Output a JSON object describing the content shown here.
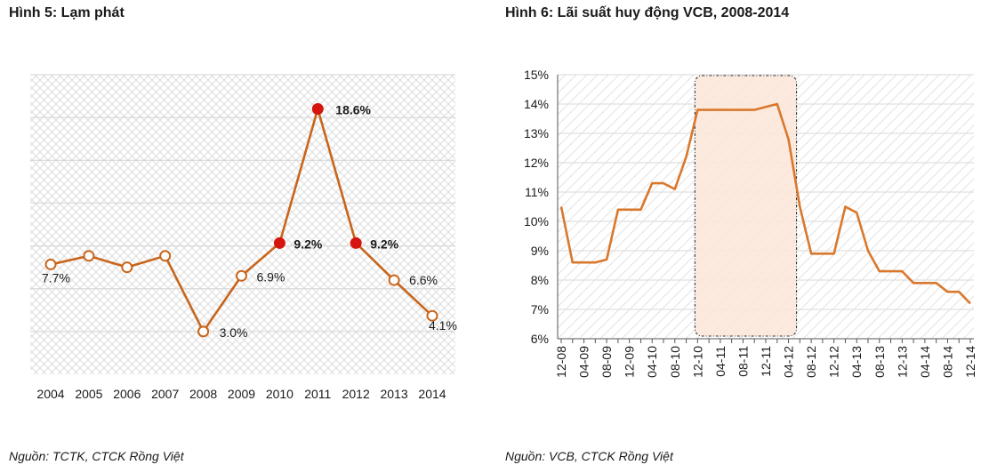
{
  "chart_data": [
    {
      "type": "line",
      "title": "Hình 5: Lạm phát",
      "source": "Nguồn: TCTK, CTCK Rồng Việt",
      "categories": [
        "2004",
        "2005",
        "2006",
        "2007",
        "2008",
        "2009",
        "2010",
        "2011",
        "2012",
        "2013",
        "2014"
      ],
      "values": [
        7.7,
        8.3,
        7.5,
        8.3,
        3.0,
        6.9,
        9.2,
        18.6,
        9.2,
        6.6,
        4.1
      ],
      "data_labels": [
        "7.7%",
        "",
        "",
        "",
        "3.0%",
        "6.9%",
        "9.2%",
        "18.6%",
        "9.2%",
        "6.6%",
        "4.1%"
      ],
      "highlighted": [
        false,
        false,
        false,
        false,
        false,
        false,
        true,
        true,
        true,
        false,
        false
      ],
      "ylim": [
        0,
        21
      ],
      "grid": true,
      "colors": {
        "line": "#c8651b",
        "highlight": "#d6150e",
        "marker_fill": "#ffffff",
        "grid": "#d4d4d4"
      }
    },
    {
      "type": "line",
      "title": "Hình 6: Lãi suất huy động VCB, 2008-2014",
      "source": "Nguồn: VCB, CTCK Rồng Việt",
      "x": [
        "12-08",
        "02-09",
        "04-09",
        "06-09",
        "08-09",
        "10-09",
        "12-09",
        "02-10",
        "04-10",
        "06-10",
        "08-10",
        "10-10",
        "12-10",
        "02-11",
        "04-11",
        "06-11",
        "08-11",
        "10-11",
        "12-11",
        "02-12",
        "04-12",
        "06-12",
        "08-12",
        "10-12",
        "12-12",
        "02-13",
        "04-13",
        "06-13",
        "08-13",
        "10-13",
        "12-13",
        "02-14",
        "04-14",
        "06-14",
        "08-14",
        "10-14",
        "12-14"
      ],
      "tick_labels": [
        "12-08",
        "04-09",
        "08-09",
        "12-09",
        "04-10",
        "08-10",
        "12-10",
        "04-11",
        "08-11",
        "12-11",
        "04-12",
        "08-12",
        "12-12",
        "04-13",
        "08-13",
        "12-13",
        "04-14",
        "08-14",
        "12-14"
      ],
      "values": [
        10.5,
        8.6,
        8.6,
        8.6,
        8.7,
        10.4,
        10.4,
        10.4,
        11.3,
        11.3,
        11.1,
        12.2,
        13.8,
        13.8,
        13.8,
        13.8,
        13.8,
        13.8,
        13.9,
        14.0,
        12.8,
        10.5,
        8.9,
        8.9,
        8.9,
        10.5,
        10.3,
        9.0,
        8.3,
        8.3,
        8.3,
        7.9,
        7.9,
        7.9,
        7.6,
        7.6,
        7.2
      ],
      "y_ticks": [
        "6%",
        "7%",
        "8%",
        "9%",
        "10%",
        "11%",
        "12%",
        "13%",
        "14%",
        "15%"
      ],
      "ylim": [
        6,
        15
      ],
      "highlight_range": [
        "12-10",
        "04-12"
      ],
      "grid": true,
      "colors": {
        "line": "#d9782d",
        "highlight_fill": "#fbe6d8",
        "grid": "#dadada"
      }
    }
  ]
}
